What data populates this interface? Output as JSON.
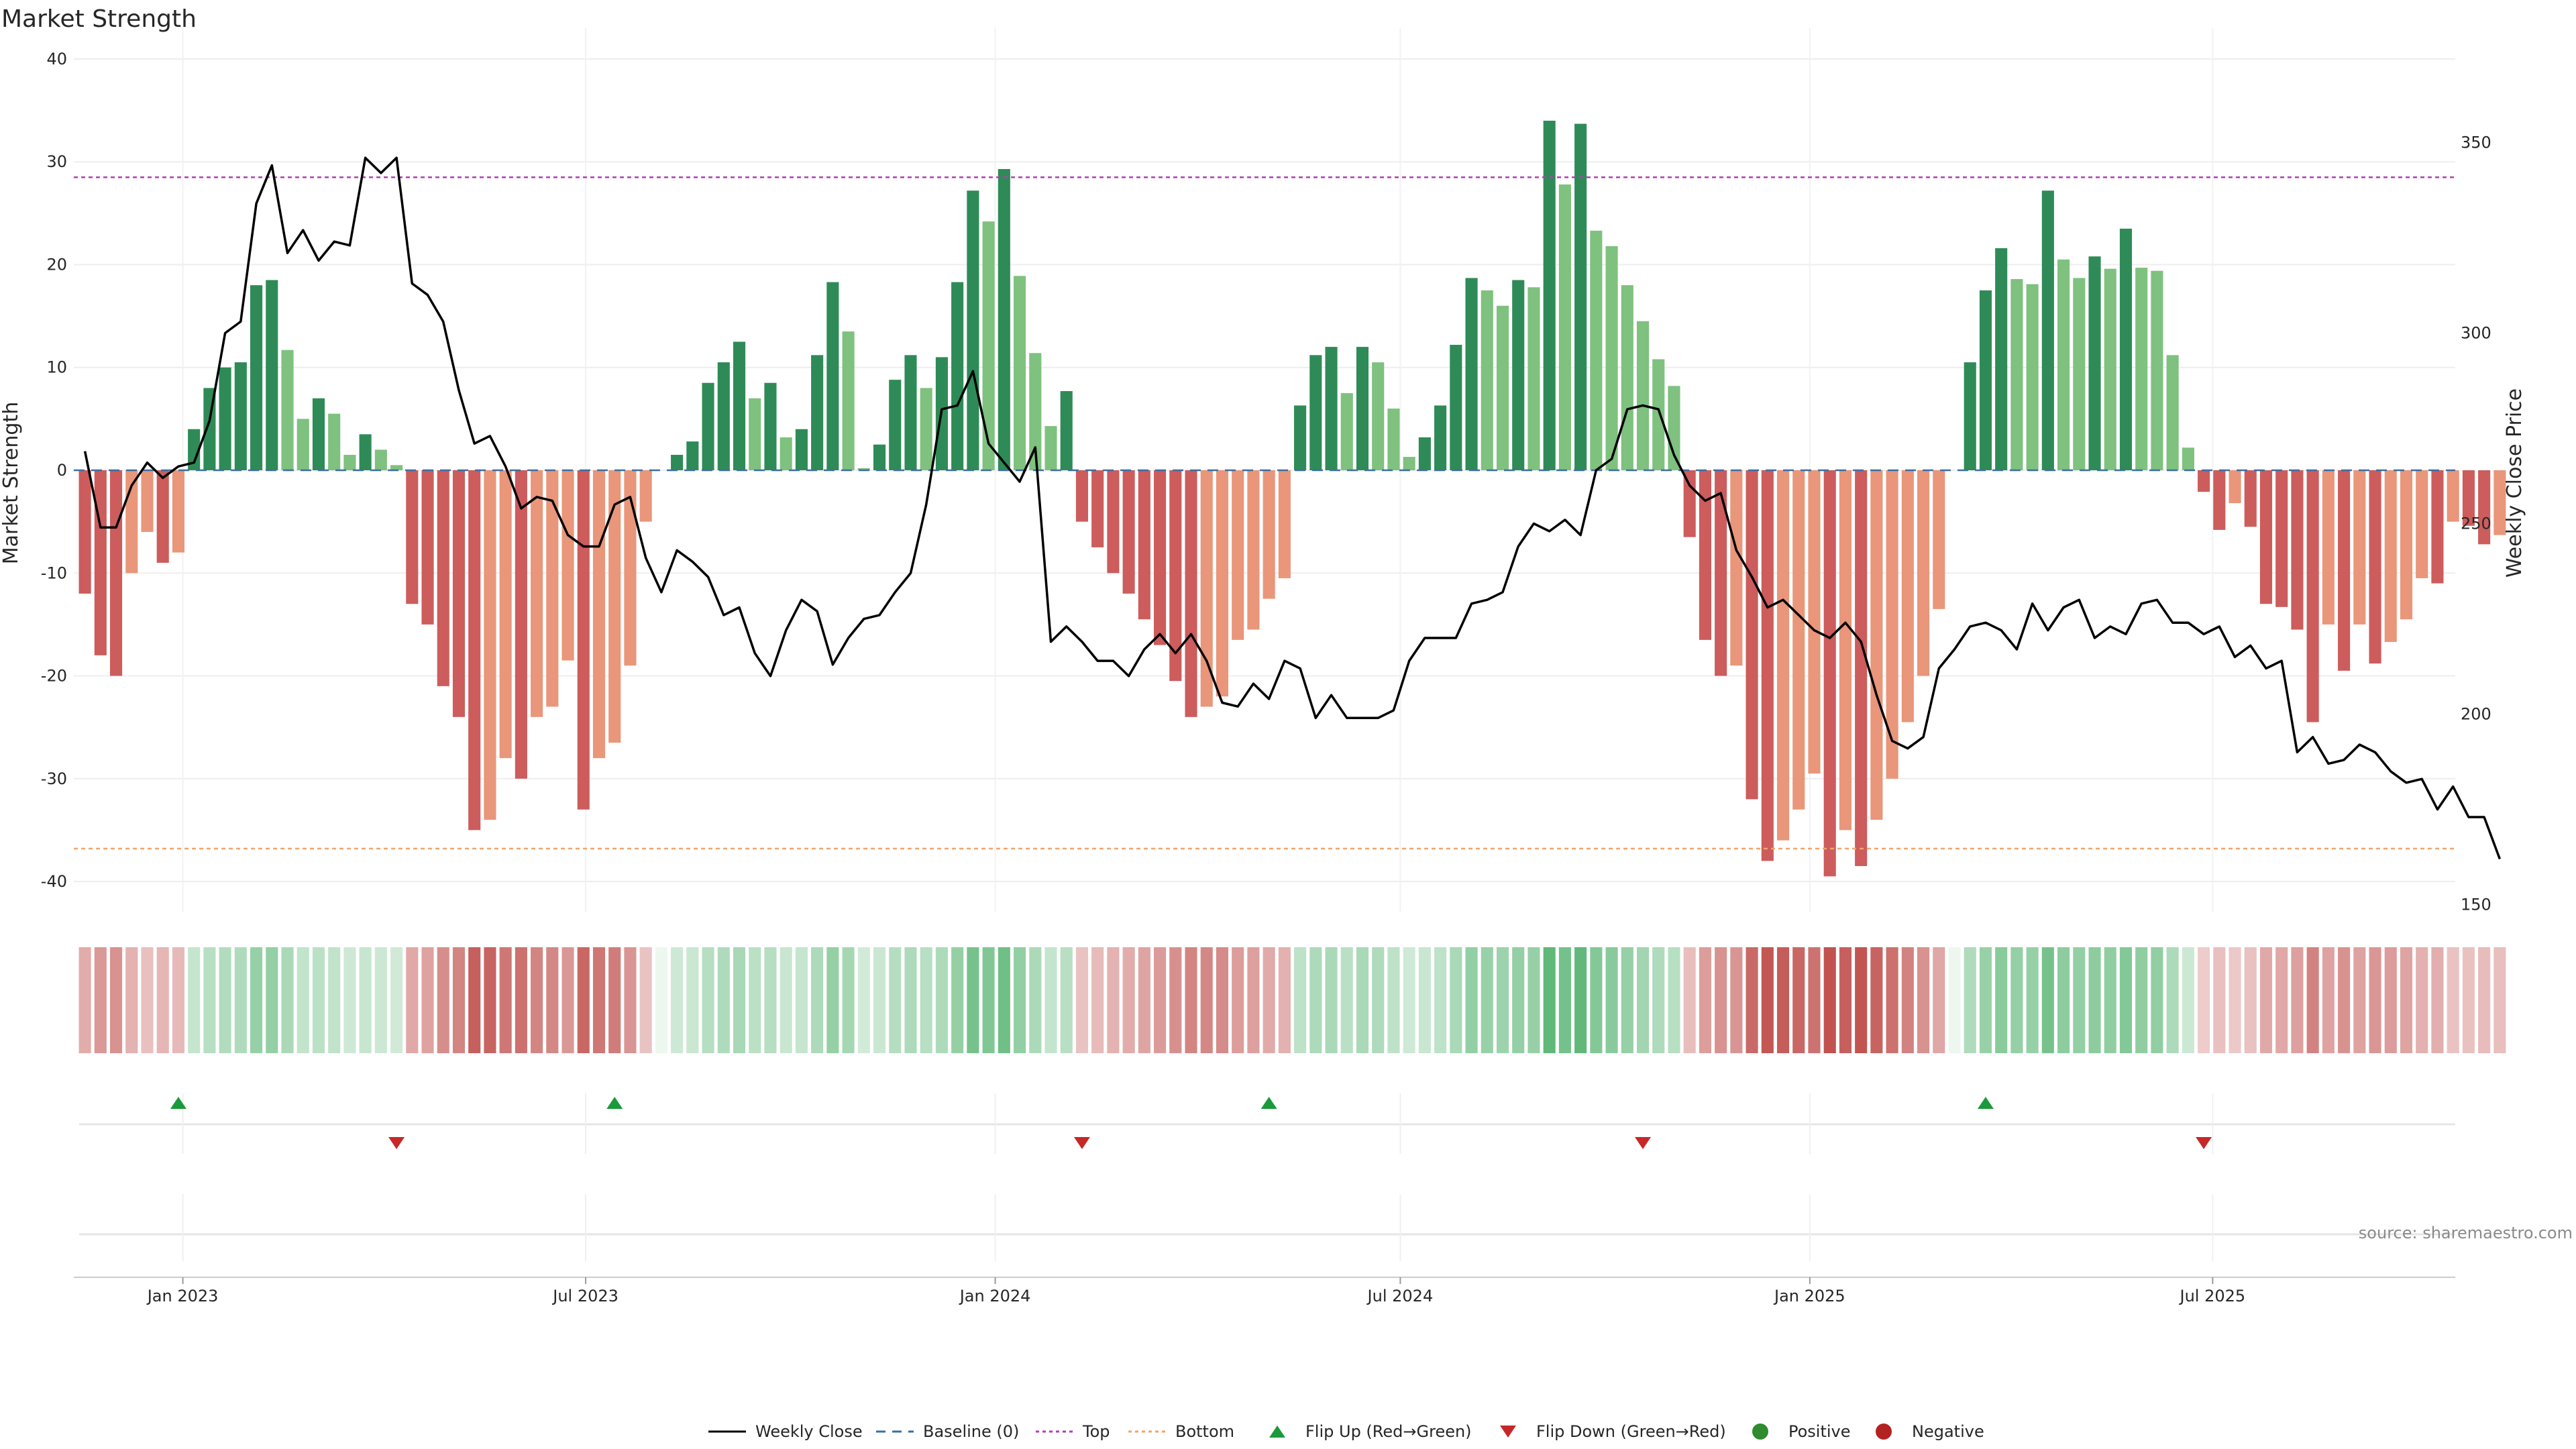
{
  "title": "Market Strength",
  "source": "source: sharemaestro.com",
  "colors": {
    "pos_dark": "#2e8b57",
    "pos_light": "#7fc17f",
    "neg_dark": "#cd5c5c",
    "neg_light": "#e9967a",
    "top_line": "#b23fb2",
    "bottom_line": "#f2a46b",
    "baseline": "#3b6ea5",
    "price_line": "#000000",
    "flip_up": "#1a9a3a",
    "flip_down": "#c62828"
  },
  "chart_data": {
    "type": "bar",
    "title": "Market Strength",
    "ylabel": "Market Strength",
    "y2label": "Weekly Close Price",
    "ylim": [
      -43,
      43
    ],
    "y2lim": [
      148,
      380
    ],
    "xlim": [
      "2022-11-13",
      "2025-10-18"
    ],
    "y_ticks": [
      40,
      30,
      20,
      10,
      0,
      -10,
      -20,
      -30,
      -40
    ],
    "y2_ticks": [
      350,
      300,
      250,
      200,
      150
    ],
    "x_ticks": [
      {
        "date": "2023-01-01",
        "label": "Jan 2023"
      },
      {
        "date": "2023-07-01",
        "label": "Jul 2023"
      },
      {
        "date": "2024-01-01",
        "label": "Jan 2024"
      },
      {
        "date": "2024-07-01",
        "label": "Jul 2024"
      },
      {
        "date": "2025-01-01",
        "label": "Jan 2025"
      },
      {
        "date": "2025-07-01",
        "label": "Jul 2025"
      }
    ],
    "start_date": "2022-11-18",
    "bars": [
      -12,
      -18,
      -20,
      -10,
      -6,
      -9,
      -8,
      4,
      8,
      10,
      10.5,
      18,
      18.5,
      11.7,
      5,
      7,
      5.5,
      1.5,
      3.5,
      2,
      0.5,
      -13,
      -15,
      -21,
      -24,
      -35,
      -34,
      -28,
      -30,
      -24,
      -23,
      -18.5,
      -33,
      -28,
      -26.5,
      -19,
      -5,
      0,
      1.5,
      2.8,
      8.5,
      10.5,
      12.5,
      7,
      8.5,
      3.2,
      4,
      11.2,
      18.3,
      13.5,
      0.2,
      2.5,
      8.8,
      11.2,
      8,
      11,
      18.3,
      27.2,
      24.2,
      29.3,
      18.9,
      11.4,
      4.3,
      7.7,
      -5,
      -7.5,
      -10,
      -12,
      -14.5,
      -17,
      -20.5,
      -24,
      -23,
      -22,
      -16.5,
      -15.5,
      -12.5,
      -10.5,
      6.3,
      11.2,
      12,
      7.5,
      12,
      10.5,
      6,
      1.3,
      3.2,
      6.3,
      12.2,
      18.7,
      17.5,
      16,
      18.5,
      17.8,
      34,
      27.8,
      33.7,
      23.3,
      21.8,
      18,
      14.5,
      10.8,
      8.2,
      -6.5,
      -16.5,
      -20,
      -19,
      -32,
      -38,
      -36,
      -33,
      -29.5,
      -39.5,
      -35,
      -38.5,
      -34,
      -30,
      -24.5,
      -20,
      -13.5,
      0,
      10.5,
      17.5,
      21.6,
      18.6,
      18.1,
      27.2,
      20.5,
      18.7,
      20.8,
      19.6,
      23.5,
      19.7,
      19.4,
      11.2,
      2.2,
      -2.1,
      -5.8,
      -3.2,
      -5.5,
      -13,
      -13.3,
      -15.5,
      -24.5,
      -15,
      -19.5,
      -15,
      -18.8,
      -16.7,
      -14.5,
      -10.5,
      -11,
      -5,
      -5.4,
      -7.2,
      -6.3
    ],
    "price": [
      269,
      249,
      249,
      260,
      266,
      262,
      265,
      266,
      277,
      300,
      303,
      334,
      344,
      321,
      327,
      319,
      324,
      323,
      346,
      342,
      346,
      313,
      310,
      303,
      285,
      271,
      273,
      265,
      254,
      257,
      256,
      247,
      244,
      244,
      255,
      257,
      241,
      232,
      243,
      240,
      236,
      226,
      228,
      216,
      210,
      222,
      230,
      227,
      213,
      220,
      225,
      226,
      232,
      237,
      255,
      280,
      281,
      290,
      271,
      266,
      261,
      270,
      219,
      223,
      219,
      214,
      214,
      210,
      217,
      221,
      216,
      221,
      214,
      203,
      202,
      208,
      204,
      214,
      212,
      199,
      205,
      199,
      199,
      199,
      201,
      214,
      220,
      220,
      220,
      229,
      230,
      232,
      244,
      250,
      248,
      251,
      247,
      264,
      267,
      280,
      281,
      280,
      268,
      260,
      256,
      258,
      243,
      236,
      228,
      230,
      226,
      222,
      220,
      224,
      219,
      205,
      193,
      191,
      194,
      212,
      217,
      223,
      224,
      222,
      217,
      229,
      222,
      228,
      230,
      220,
      223,
      221,
      229,
      230,
      224,
      224,
      221,
      223,
      215,
      218,
      212,
      214,
      190,
      194,
      187,
      188,
      192,
      190,
      185,
      182,
      183,
      175,
      181,
      173,
      173,
      162
    ],
    "flip_up": [
      "2022-12-30",
      "2023-07-14",
      "2024-05-03",
      "2025-03-21"
    ],
    "flip_down": [
      "2023-04-07",
      "2024-02-09",
      "2024-10-18",
      "2025-06-27"
    ],
    "legend": [
      "Weekly Close",
      "Baseline (0)",
      "Top",
      "Bottom",
      "Flip Up (Red→Green)",
      "Flip Down (Green→Red)",
      "Positive",
      "Negative"
    ],
    "top_level": 28.5,
    "bottom_level": -36.8,
    "grid": true,
    "legend_position": "bottom-center"
  }
}
